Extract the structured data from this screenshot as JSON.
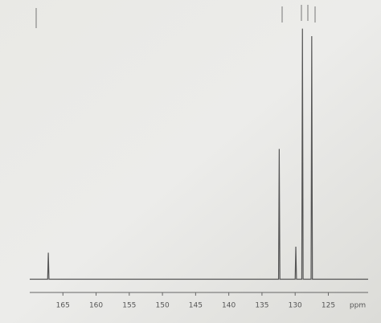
{
  "chart_data": {
    "type": "line",
    "x_label": "ppm",
    "x": [
      170,
      167.3,
      167.2,
      167.1,
      132.5,
      132.4,
      132.3,
      130.0,
      129.9,
      129.8,
      129.0,
      128.9,
      128.8,
      127.6,
      127.5,
      127.4,
      119
    ],
    "values": [
      0,
      0,
      10.6,
      0,
      0,
      52,
      0,
      0,
      13,
      0,
      0,
      100,
      0,
      0,
      97,
      0,
      0
    ],
    "color": "#555555",
    "xlim": [
      170,
      119
    ],
    "xticks": [
      165,
      160,
      155,
      150,
      145,
      140,
      135,
      130,
      125
    ],
    "ylim": [
      -4,
      105
    ]
  }
}
